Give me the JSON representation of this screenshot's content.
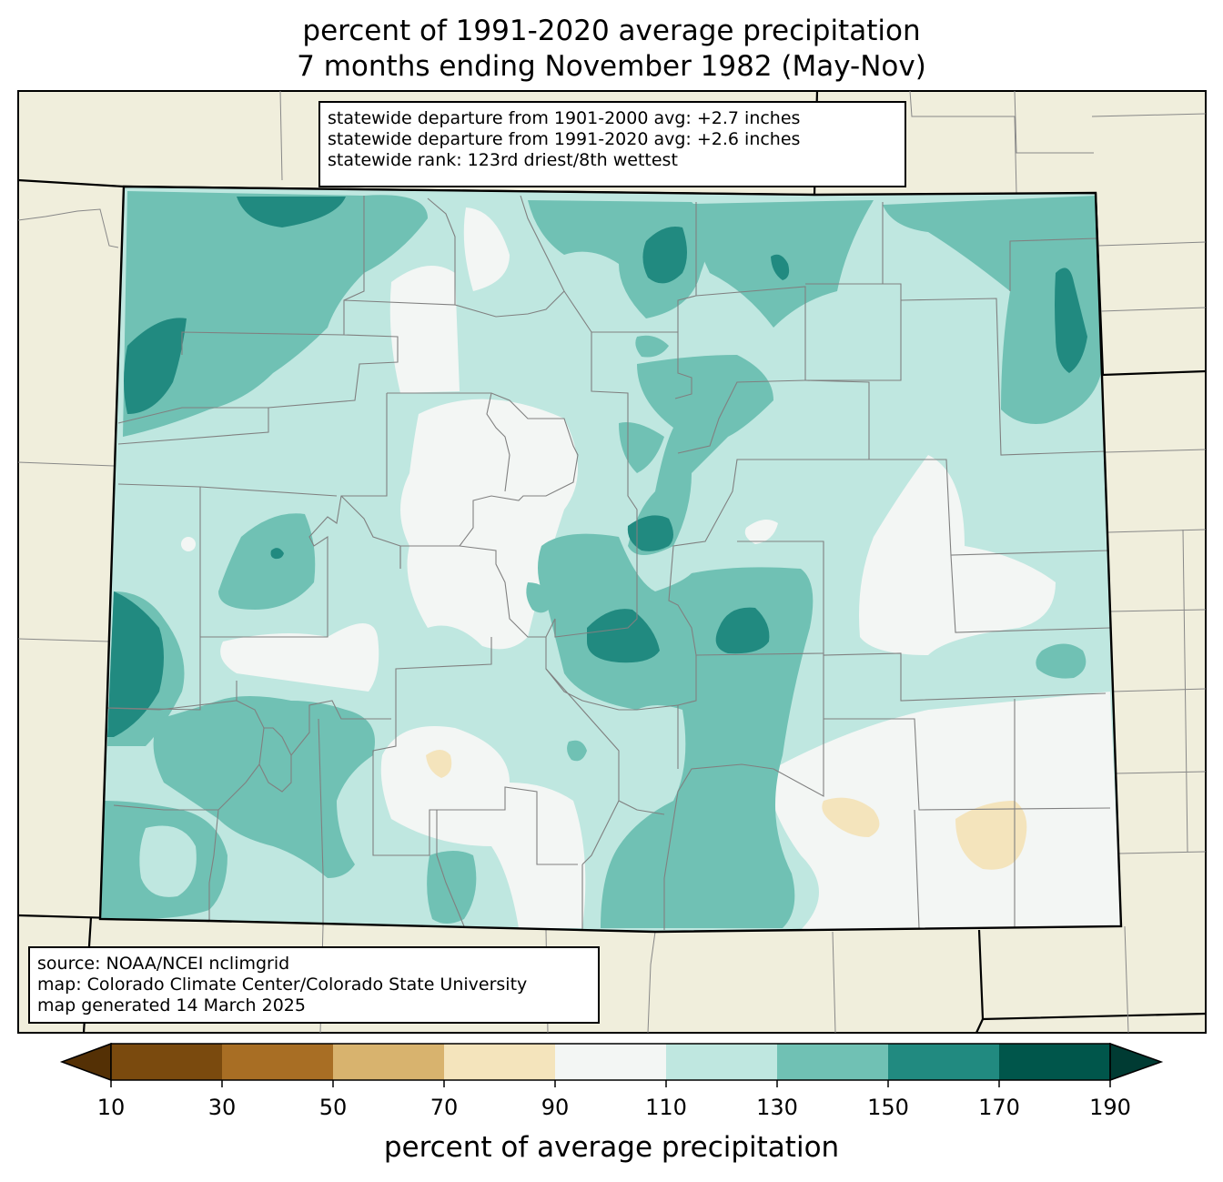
{
  "title": {
    "line1": "percent of 1991-2020 average precipitation",
    "line2": "7 months ending November 1982 (May-Nov)"
  },
  "stats": {
    "line1": "statewide departure from 1901-2000 avg: +2.7 inches",
    "line2": "statewide departure from 1991-2020 avg: +2.6 inches",
    "line3": "statewide rank: 123rd driest/8th wettest"
  },
  "credits": {
    "line1": "source: NOAA/NCEI nclimgrid",
    "line2": "map: Colorado Climate Center/Colorado State University",
    "line3": "map generated 14 March 2025"
  },
  "colorbar": {
    "label": "percent of average precipitation",
    "ticks": [
      "10",
      "30",
      "50",
      "70",
      "90",
      "110",
      "130",
      "150",
      "170",
      "190"
    ],
    "colors": {
      "under": "#543005",
      "b10_30": "#7a4a0e",
      "b30_50": "#a86e24",
      "b50_70": "#d8b36e",
      "b70_90": "#f4e4bc",
      "b90_110": "#f3f6f4",
      "b110_130": "#bfe7e0",
      "b130_150": "#70c1b4",
      "b150_170": "#218a80",
      "b170_190": "#00564b",
      "over": "#003b33"
    }
  },
  "map_colors": {
    "outside": "#f0eedc",
    "state_border": "#000000",
    "county_lines": "#808080"
  }
}
